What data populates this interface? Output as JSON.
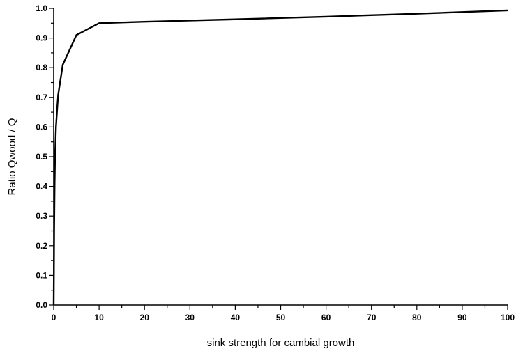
{
  "chart_data": {
    "type": "line",
    "title": "",
    "xlabel": "sink strength for cambial growth",
    "ylabel": "Ratio Qwood / Q",
    "xlim": [
      0,
      100
    ],
    "ylim": [
      0.0,
      1.0
    ],
    "grid": false,
    "legend": "none",
    "x_ticks": [
      "0",
      "10",
      "20",
      "30",
      "40",
      "50",
      "60",
      "70",
      "80",
      "90",
      "100"
    ],
    "y_ticks": [
      "0.0",
      "0.1",
      "0.2",
      "0.3",
      "0.4",
      "0.5",
      "0.6",
      "0.7",
      "0.8",
      "0.9",
      "1.0"
    ],
    "series": [
      {
        "x": [
          0,
          0.1,
          0.2,
          0.3,
          0.5,
          0.8,
          1,
          2,
          5,
          10,
          20,
          40,
          60,
          80,
          100
        ],
        "y": [
          0.0,
          0.26,
          0.41,
          0.5,
          0.6,
          0.67,
          0.71,
          0.81,
          0.91,
          0.95,
          0.955,
          0.963,
          0.972,
          0.982,
          0.993
        ],
        "color": "#000000"
      }
    ]
  }
}
